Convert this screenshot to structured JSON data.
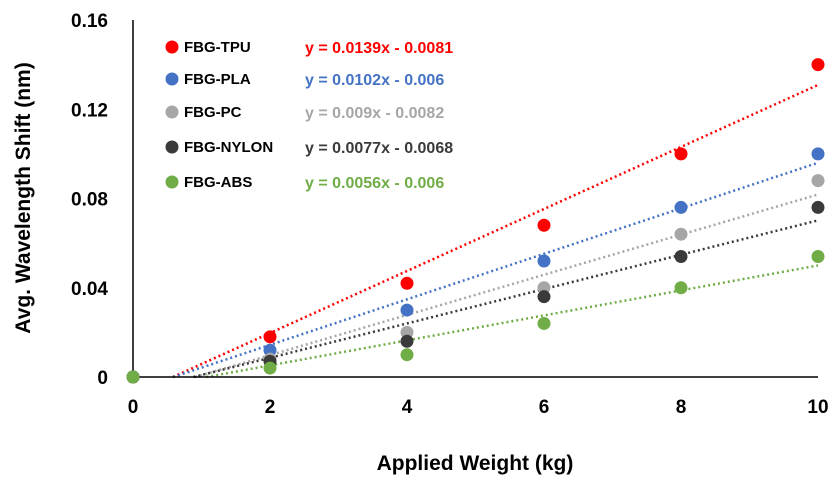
{
  "chart_data": {
    "type": "scatter",
    "xlabel": "Applied Weight (kg)",
    "ylabel": "Avg. Wavelength Shift (nm)",
    "xlim": [
      0,
      10
    ],
    "ylim": [
      0,
      0.16
    ],
    "xticks": [
      "0",
      "2",
      "4",
      "6",
      "8",
      "10"
    ],
    "yticks": [
      "0",
      "0.04",
      "0.08",
      "0.12",
      "0.16"
    ],
    "grid": false,
    "legend": "top-left",
    "x": [
      0,
      2,
      4,
      6,
      8,
      10
    ],
    "series": [
      {
        "name": "FBG-TPU",
        "color": "#ff0000",
        "values": [
          0,
          0.018,
          0.042,
          0.068,
          0.1,
          0.14
        ],
        "trendline": {
          "equation": "y = 0.0139x - 0.0081",
          "slope": 0.0139,
          "intercept": -0.0081
        }
      },
      {
        "name": "FBG-PLA",
        "color": "#4472c4",
        "values": [
          0,
          0.012,
          0.03,
          0.052,
          0.076,
          0.1
        ],
        "trendline": {
          "equation": "y = 0.0102x - 0.006",
          "slope": 0.0102,
          "intercept": -0.006
        }
      },
      {
        "name": "FBG-PC",
        "color": "#a6a6a6",
        "values": [
          0,
          0.008,
          0.02,
          0.04,
          0.064,
          0.088
        ],
        "trendline": {
          "equation": "y = 0.009x - 0.0082",
          "slope": 0.009,
          "intercept": -0.0082
        }
      },
      {
        "name": "FBG-NYLON",
        "color": "#3a3a3a",
        "values": [
          0,
          0.007,
          0.016,
          0.036,
          0.054,
          0.076
        ],
        "trendline": {
          "equation": "y = 0.0077x - 0.0068",
          "slope": 0.0077,
          "intercept": -0.0068
        }
      },
      {
        "name": "FBG-ABS",
        "color": "#70ad47",
        "values": [
          0,
          0.004,
          0.01,
          0.024,
          0.04,
          0.054
        ],
        "trendline": {
          "equation": "y = 0.0056x - 0.006",
          "slope": 0.0056,
          "intercept": -0.006
        }
      }
    ]
  }
}
